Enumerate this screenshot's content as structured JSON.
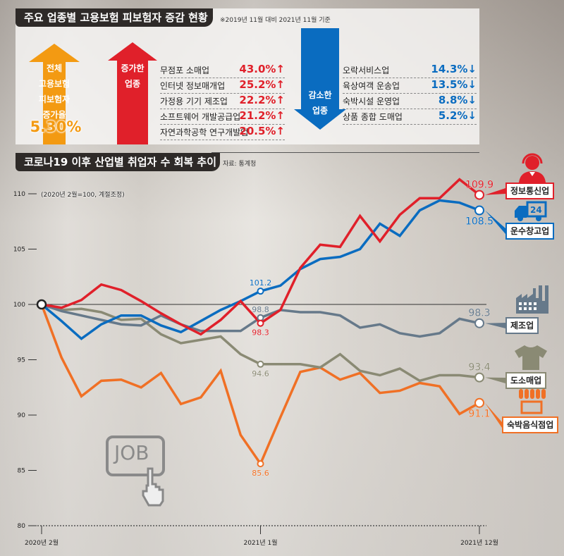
{
  "section1": {
    "title": "주요 업종별 고용보험 피보험자 증감 현황",
    "note": "※2019년 11월 대비 2021년 11월 기준",
    "total": {
      "lines": [
        "전체",
        "고용보험",
        "피보험자",
        "증가율"
      ],
      "value": "5.30%"
    },
    "increase": {
      "label_lines": [
        "증가한",
        "업종"
      ],
      "items": [
        {
          "name": "무점포 소매업",
          "value": "43.0%↑"
        },
        {
          "name": "인터넷 정보매개업",
          "value": "25.2%↑"
        },
        {
          "name": "가정용 기기 제조업",
          "value": "22.2%↑"
        },
        {
          "name": "소프트웨어 개발공급업",
          "value": "21.2%↑"
        },
        {
          "name": "자연과학공학 연구개발업",
          "value": "20.5%↑"
        }
      ]
    },
    "decrease": {
      "label_lines": [
        "감소한",
        "업종"
      ],
      "items": [
        {
          "name": "오락서비스업",
          "value": "14.3%↓"
        },
        {
          "name": "육상여객 운송업",
          "value": "13.5%↓"
        },
        {
          "name": "숙박시설 운영업",
          "value": "8.8%↓"
        },
        {
          "name": "상품 종합 도매업",
          "value": "5.2%↓"
        }
      ]
    },
    "colors": {
      "total": "#f39a12",
      "increase": "#e0202a",
      "decrease": "#0a6cc0"
    }
  },
  "section2": {
    "title": "코로나19 이후 산업별 취업자 수 회복 추이",
    "source": "자료: 통계청",
    "job_icon_text": "JOB"
  },
  "chart_data": {
    "type": "line",
    "title": "코로나19 이후 산업별 취업자 수 회복 추이",
    "ylabel_note": "(2020년 2월=100, 계절조정)",
    "ylim": [
      80,
      110
    ],
    "yticks": [
      110,
      105,
      100,
      95,
      90,
      85,
      80
    ],
    "x": [
      "2020-02",
      "2020-03",
      "2020-04",
      "2020-05",
      "2020-06",
      "2020-07",
      "2020-08",
      "2020-09",
      "2020-10",
      "2020-11",
      "2020-12",
      "2021-01",
      "2021-02",
      "2021-03",
      "2021-04",
      "2021-05",
      "2021-06",
      "2021-07",
      "2021-08",
      "2021-09",
      "2021-10",
      "2021-11",
      "2021-12"
    ],
    "xtick_labels": [
      {
        "index": 0,
        "label": "2020년 2월"
      },
      {
        "index": 11,
        "label": "2021년 1월"
      },
      {
        "index": 22,
        "label": "2021년 12월"
      }
    ],
    "series": [
      {
        "name": "정보통신업",
        "color": "#e0202a",
        "icon": "headset-person-icon",
        "values": [
          100,
          99.7,
          100.4,
          101.8,
          101.3,
          100.3,
          99.2,
          98.2,
          97.3,
          98.6,
          100.3,
          98.3,
          99.5,
          103.3,
          105.4,
          105.2,
          108.0,
          105.7,
          108.1,
          109.6,
          109.6,
          111.3,
          109.9
        ],
        "labels": [
          {
            "index": 11,
            "text": "98.3",
            "pos": "below"
          },
          {
            "index": 22,
            "text": "109.9",
            "pos": "above"
          }
        ]
      },
      {
        "name": "운수창고업",
        "color": "#0a6cc0",
        "icon": "delivery-truck-icon",
        "values": [
          100,
          98.5,
          96.9,
          98.2,
          99.0,
          99.0,
          98.1,
          97.5,
          98.5,
          99.5,
          100.3,
          101.2,
          101.7,
          103.2,
          104.1,
          104.3,
          105.0,
          107.3,
          106.2,
          108.5,
          109.4,
          109.2,
          108.5
        ],
        "labels": [
          {
            "index": 11,
            "text": "101.2",
            "pos": "above"
          },
          {
            "index": 22,
            "text": "108.5",
            "pos": "below"
          }
        ]
      },
      {
        "name": "제조업",
        "color": "#66798a",
        "icon": "factory-icon",
        "values": [
          100,
          99.4,
          99.0,
          98.6,
          98.2,
          98.1,
          99.0,
          98.2,
          97.6,
          97.6,
          97.6,
          98.8,
          99.5,
          99.3,
          99.3,
          99.0,
          97.9,
          98.2,
          97.4,
          97.1,
          97.4,
          98.7,
          98.3
        ],
        "labels": [
          {
            "index": 11,
            "text": "98.8",
            "pos": "above"
          },
          {
            "index": 22,
            "text": "98.3",
            "pos": "above"
          }
        ]
      },
      {
        "name": "도소매업",
        "color": "#8a8a74",
        "icon": "tshirt-icon",
        "values": [
          100,
          99.5,
          99.6,
          99.3,
          98.6,
          98.7,
          97.3,
          96.5,
          96.8,
          97.1,
          95.5,
          94.6,
          94.6,
          94.6,
          94.3,
          95.5,
          94.0,
          93.6,
          94.2,
          93.1,
          93.6,
          93.6,
          93.4
        ],
        "labels": [
          {
            "index": 11,
            "text": "94.6",
            "pos": "below"
          },
          {
            "index": 22,
            "text": "93.4",
            "pos": "above"
          }
        ]
      },
      {
        "name": "숙박음식점업",
        "color": "#f07025",
        "icon": "storefront-icon",
        "values": [
          100,
          95.2,
          91.7,
          93.1,
          93.2,
          92.5,
          93.8,
          91.0,
          91.6,
          94.0,
          88.2,
          85.6,
          89.8,
          93.9,
          94.3,
          93.2,
          93.8,
          92.0,
          92.2,
          92.9,
          92.6,
          90.1,
          91.1
        ],
        "labels": [
          {
            "index": 11,
            "text": "85.6",
            "pos": "below"
          },
          {
            "index": 22,
            "text": "91.1",
            "pos": "below"
          }
        ]
      }
    ],
    "grid": false,
    "legend": "right"
  }
}
